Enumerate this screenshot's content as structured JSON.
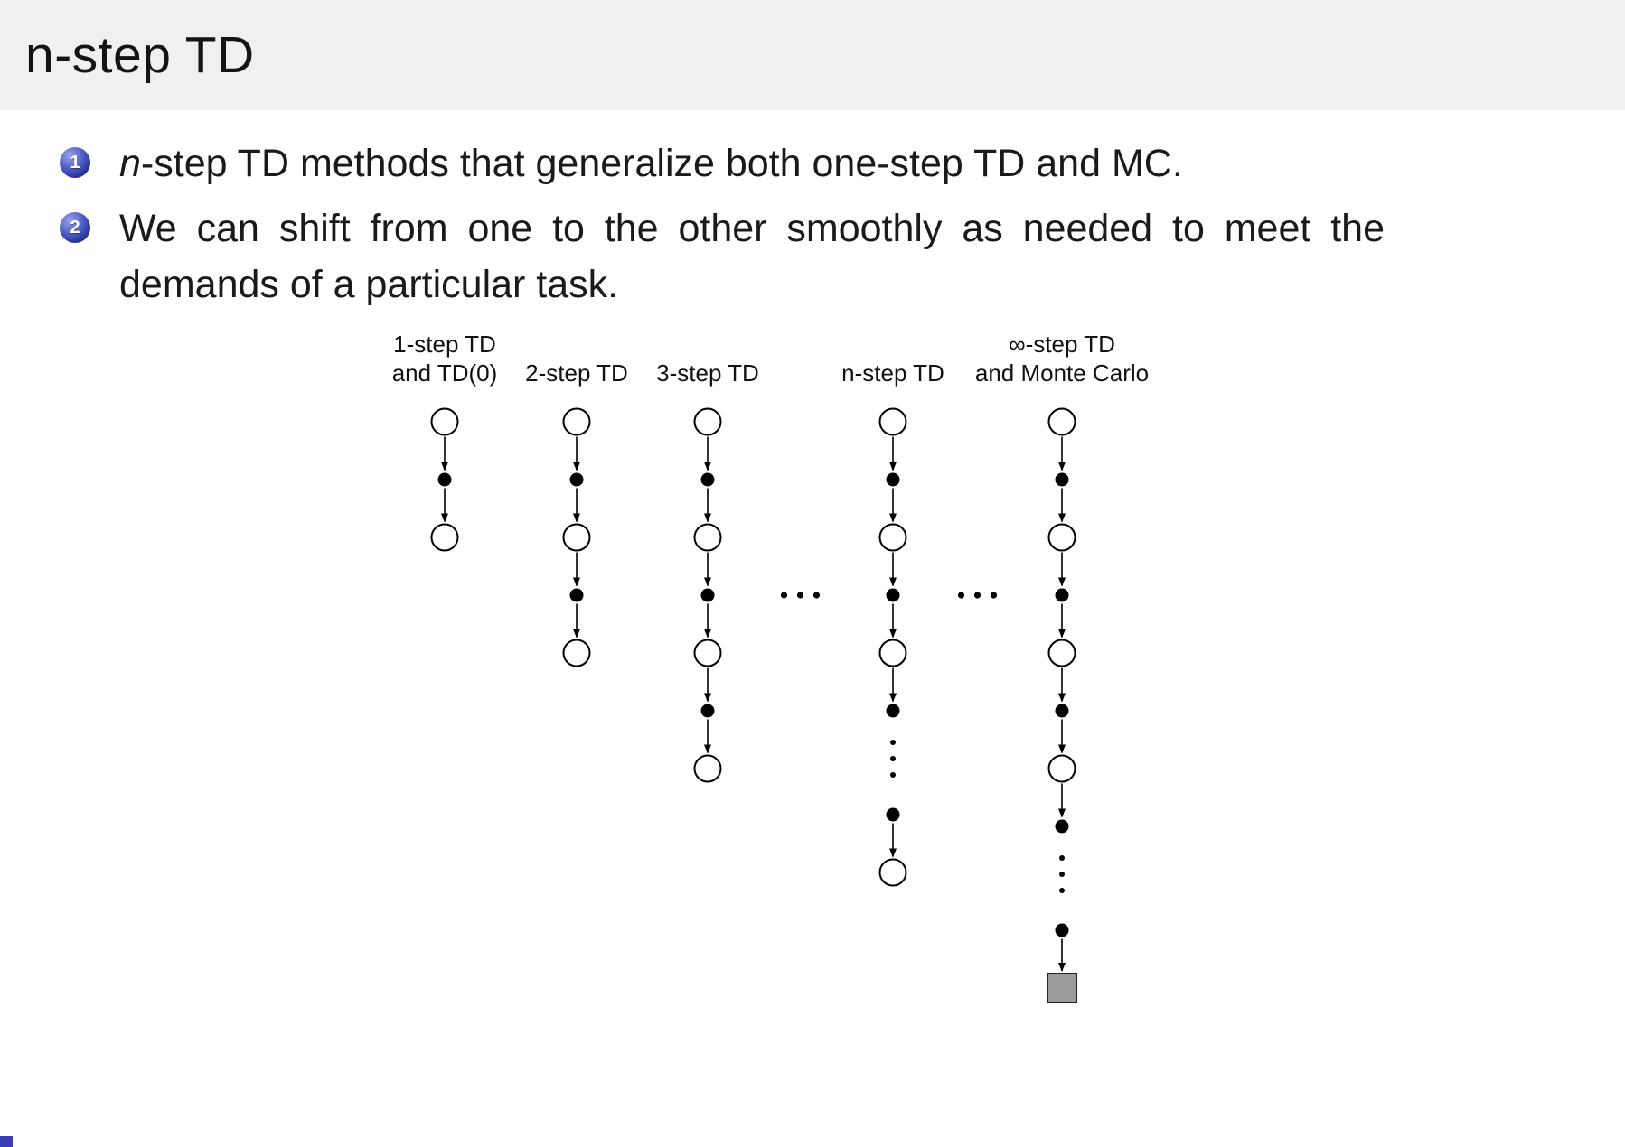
{
  "header": {
    "title": "n-step TD"
  },
  "bullets": [
    {
      "number": "1",
      "italic_lead": "n",
      "text": "-step TD methods that generalize both one-step TD and MC."
    },
    {
      "number": "2",
      "italic_lead": "",
      "text": "We can shift from one to the other smoothly as needed to meet the demands of a particular task."
    }
  ],
  "colors": {
    "header_bg": "#f0f0f0",
    "badge_blue": "#27349a",
    "footer_accent": "#3c3cb4",
    "text": "#1a1a1a"
  },
  "chart_data": {
    "type": "diagram",
    "title": "n-step TD backup diagrams",
    "columns": [
      {
        "label_lines": [
          "1-step TD",
          "and TD(0)"
        ],
        "nodes": [
          "state",
          "action",
          "state"
        ]
      },
      {
        "label_lines": [
          "2-step TD"
        ],
        "nodes": [
          "state",
          "action",
          "state",
          "action",
          "state"
        ]
      },
      {
        "label_lines": [
          "3-step TD"
        ],
        "nodes": [
          "state",
          "action",
          "state",
          "action",
          "state",
          "action",
          "state"
        ]
      },
      {
        "label_lines": [
          "n-step TD"
        ],
        "nodes": [
          "state",
          "action",
          "state",
          "action",
          "state",
          "action",
          "vdots",
          "action",
          "state"
        ]
      },
      {
        "label_lines": [
          "∞-step TD",
          "and Monte Carlo"
        ],
        "nodes": [
          "state",
          "action",
          "state",
          "action",
          "state",
          "action",
          "state",
          "action",
          "vdots",
          "action",
          "terminal"
        ]
      }
    ],
    "ellipsis_after_columns": [
      2,
      3
    ],
    "node_colors": {
      "state_fill": "#ffffff",
      "stroke": "#000000",
      "action_fill": "#000000",
      "terminal_fill": "#9c9c9c"
    }
  }
}
